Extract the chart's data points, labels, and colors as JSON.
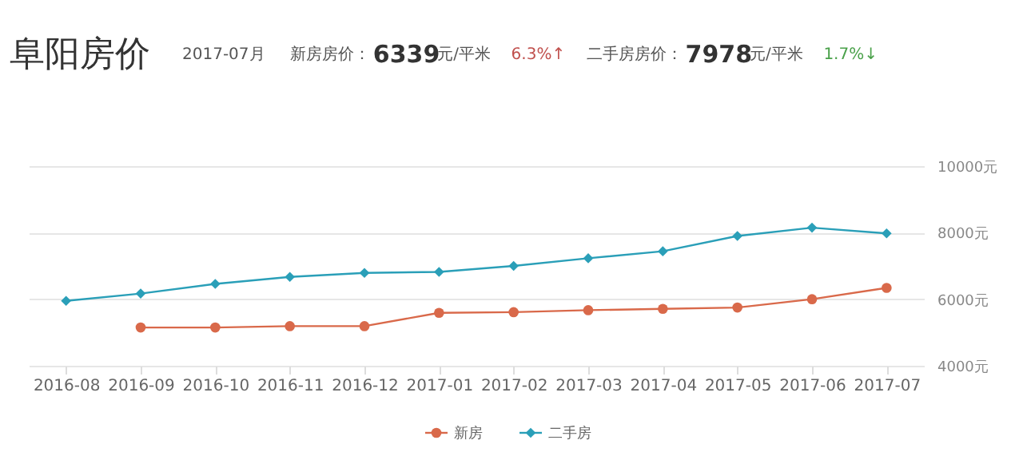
{
  "chart_data": {
    "type": "line",
    "title": "阜阳房价",
    "annotations": [
      "2017-07月",
      "新房房价：",
      "6339",
      "元/平米",
      "6.3%↑",
      "二手房房价：",
      "7978",
      "元/平米",
      "1.7%↓"
    ],
    "categories": [
      "2016-08",
      "2016-09",
      "2016-10",
      "2016-11",
      "2016-12",
      "2017-01",
      "2017-02",
      "2017-03",
      "2017-04",
      "2017-05",
      "2017-06",
      "2017-07"
    ],
    "series": [
      {
        "name": "新房",
        "color": "#d9694a",
        "marker": "circle",
        "values": [
          null,
          5150,
          5150,
          5190,
          5190,
          5590,
          5610,
          5670,
          5710,
          5750,
          6000,
          6339
        ]
      },
      {
        "name": "二手房",
        "color": "#2a9fb8",
        "marker": "diamond",
        "values": [
          5950,
          6170,
          6460,
          6670,
          6790,
          6820,
          7000,
          7230,
          7440,
          7900,
          8150,
          7978
        ]
      }
    ],
    "ylim": [
      4000,
      10000
    ],
    "yticks": [
      {
        "value": 4000,
        "label": "4000元"
      },
      {
        "value": 6000,
        "label": "6000元"
      },
      {
        "value": 8000,
        "label": "8000元"
      },
      {
        "value": 10000,
        "label": "10000元"
      }
    ],
    "grid": "y",
    "legend": "bottom"
  }
}
